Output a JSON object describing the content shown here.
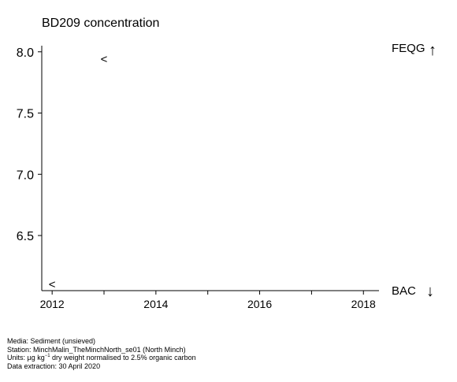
{
  "chart_data": {
    "type": "scatter",
    "title": "BD209 concentration",
    "xlabel": "",
    "ylabel": "",
    "xlim": [
      2011.8,
      2018.3
    ],
    "ylim": [
      6.05,
      8.05
    ],
    "x_ticks": [
      2012,
      2013,
      2014,
      2015,
      2016,
      2017,
      2018
    ],
    "x_tick_labels": [
      "2012",
      "",
      "2014",
      "",
      "2016",
      "",
      "2018"
    ],
    "y_ticks": [
      6.5,
      7.0,
      7.5,
      8.0
    ],
    "y_tick_labels": [
      "6.5",
      "7.0",
      "7.5",
      "8.0"
    ],
    "points": [
      {
        "x": 2013.0,
        "y": 7.94,
        "marker": "<"
      },
      {
        "x": 2012.0,
        "y": 6.1,
        "marker": "<"
      }
    ],
    "reference_labels": {
      "upper": {
        "text": "FEQG",
        "arrow": "↑"
      },
      "lower": {
        "text": "BAC",
        "arrow": "↓"
      }
    },
    "grid": false
  },
  "footer": {
    "media": "Media: Sediment (unsieved)",
    "station": "Station: MinchMalin_TheMinchNorth_se01 (North Minch)",
    "units_prefix": "Units:  µg kg",
    "units_sup": "−1",
    "units_suffix": " dry weight normalised to 2.5% organic carbon",
    "extraction": "Data extraction: 30 April 2020"
  }
}
